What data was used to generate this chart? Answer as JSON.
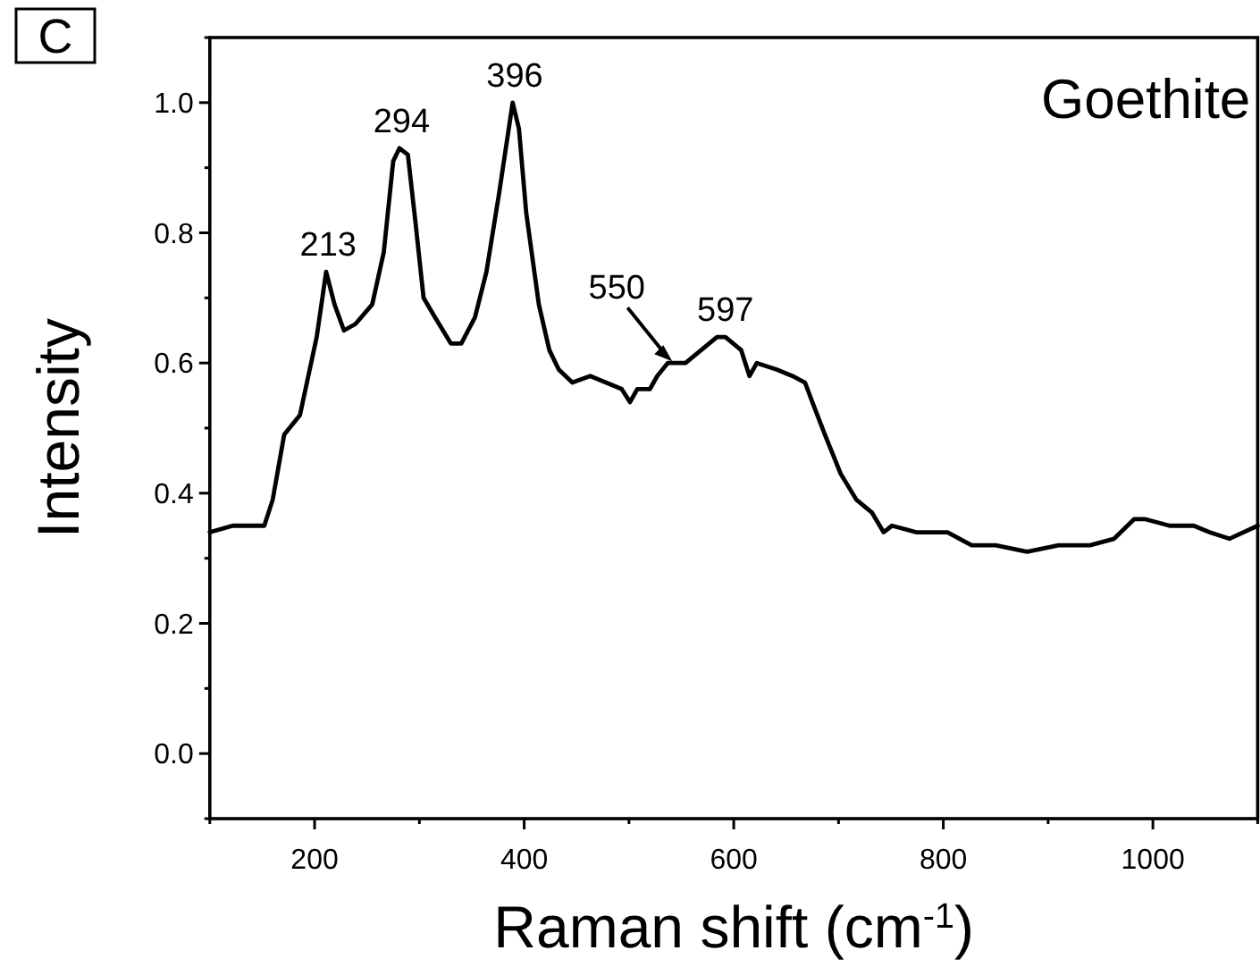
{
  "chart_data": {
    "type": "line",
    "title": "Goethite",
    "xlabel": "Raman shift (cm$^{-1}$)",
    "ylabel": "Intensity",
    "annotations": [
      "C",
      {
        "text": "213",
        "x": 213,
        "y": 0.74
      },
      {
        "text": "294",
        "x": 283,
        "y": 0.93
      },
      {
        "text": "396",
        "x": 391,
        "y": 1.0
      },
      {
        "text": "550",
        "x": 543,
        "y": 0.6
      },
      {
        "text": "597",
        "x": 592,
        "y": 0.64
      }
    ],
    "xlim": [
      100,
      1100
    ],
    "xticks": [
      {
        "value": 100,
        "label": null
      },
      200,
      {
        "value": 300,
        "label": null
      },
      400,
      {
        "value": 500,
        "label": null
      },
      600,
      {
        "value": 700,
        "label": null
      },
      800,
      {
        "value": 900,
        "label": null
      },
      1000,
      {
        "value": 1100,
        "label": null
      }
    ],
    "ylim": [
      -0.1,
      1.1
    ],
    "yticks": [
      {
        "value": -0.1,
        "label": null
      },
      {
        "value": 0,
        "label": "0.0"
      },
      {
        "value": 0.1,
        "label": null
      },
      {
        "value": 0.2,
        "label": "0.2"
      },
      {
        "value": 0.3,
        "label": null
      },
      {
        "value": 0.4,
        "label": "0.4"
      },
      {
        "value": 0.5,
        "label": null
      },
      {
        "value": 0.6,
        "label": "0.6"
      },
      {
        "value": 0.7,
        "label": null
      },
      {
        "value": 0.8,
        "label": "0.8"
      },
      {
        "value": 0.9,
        "label": null
      },
      {
        "value": 1.0,
        "label": "1.0"
      },
      {
        "value": 1.1,
        "label": null
      }
    ],
    "grid": false,
    "marker": "none",
    "line_style": "solid",
    "series": [
      {
        "color": "#000000",
        "x": [
          100,
          122,
          152,
          160,
          171,
          186,
          202,
          211,
          219,
          228,
          239,
          255,
          266,
          275,
          281,
          289,
          296,
          304,
          315,
          330,
          340,
          353,
          364,
          376,
          389,
          395,
          402,
          414,
          424,
          433,
          446,
          463,
          478,
          493,
          501,
          508,
          520,
          527,
          537,
          554,
          569,
          584,
          592,
          607,
          615,
          622,
          641,
          656,
          668,
          675,
          687,
          702,
          717,
          732,
          743,
          751,
          774,
          804,
          827,
          850,
          880,
          910,
          940,
          963,
          982,
          993,
          1016,
          1039,
          1054,
          1073,
          1100
        ],
        "values": [
          0.34,
          0.35,
          0.35,
          0.39,
          0.49,
          0.52,
          0.64,
          0.74,
          0.69,
          0.65,
          0.66,
          0.69,
          0.77,
          0.91,
          0.93,
          0.92,
          0.82,
          0.7,
          0.67,
          0.63,
          0.63,
          0.67,
          0.74,
          0.86,
          1.0,
          0.96,
          0.83,
          0.69,
          0.62,
          0.59,
          0.57,
          0.58,
          0.57,
          0.56,
          0.54,
          0.56,
          0.56,
          0.58,
          0.6,
          0.6,
          0.62,
          0.64,
          0.64,
          0.62,
          0.58,
          0.6,
          0.59,
          0.58,
          0.57,
          0.54,
          0.49,
          0.43,
          0.39,
          0.37,
          0.34,
          0.35,
          0.34,
          0.34,
          0.32,
          0.32,
          0.31,
          0.32,
          0.32,
          0.33,
          0.36,
          0.36,
          0.35,
          0.35,
          0.34,
          0.33,
          0.35
        ]
      }
    ]
  }
}
